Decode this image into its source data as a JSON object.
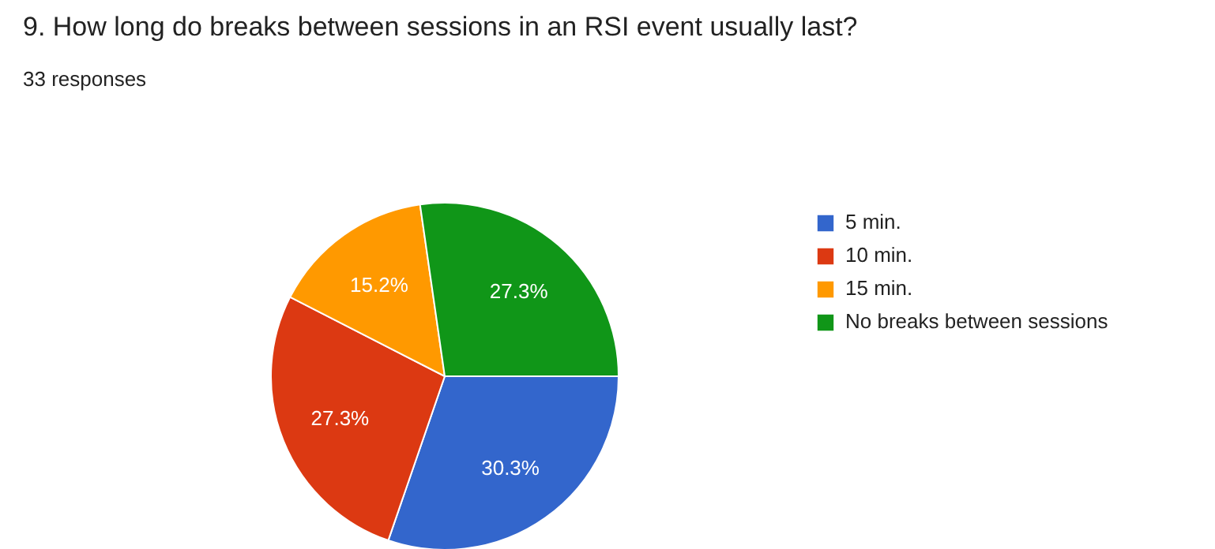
{
  "chart_data": {
    "type": "pie",
    "title": "9. How long do breaks between sessions in an RSI event usually last?",
    "subtitle": "33 responses",
    "categories": [
      "5 min.",
      "10 min.",
      "15 min.",
      "No breaks between sessions"
    ],
    "values": [
      30.3,
      27.3,
      15.2,
      27.3
    ],
    "colors": [
      "#3366cc",
      "#dc3912",
      "#ff9900",
      "#109618"
    ],
    "value_labels": [
      "30.3%",
      "27.3%",
      "15.2%",
      "27.3%"
    ],
    "legend": "right"
  }
}
